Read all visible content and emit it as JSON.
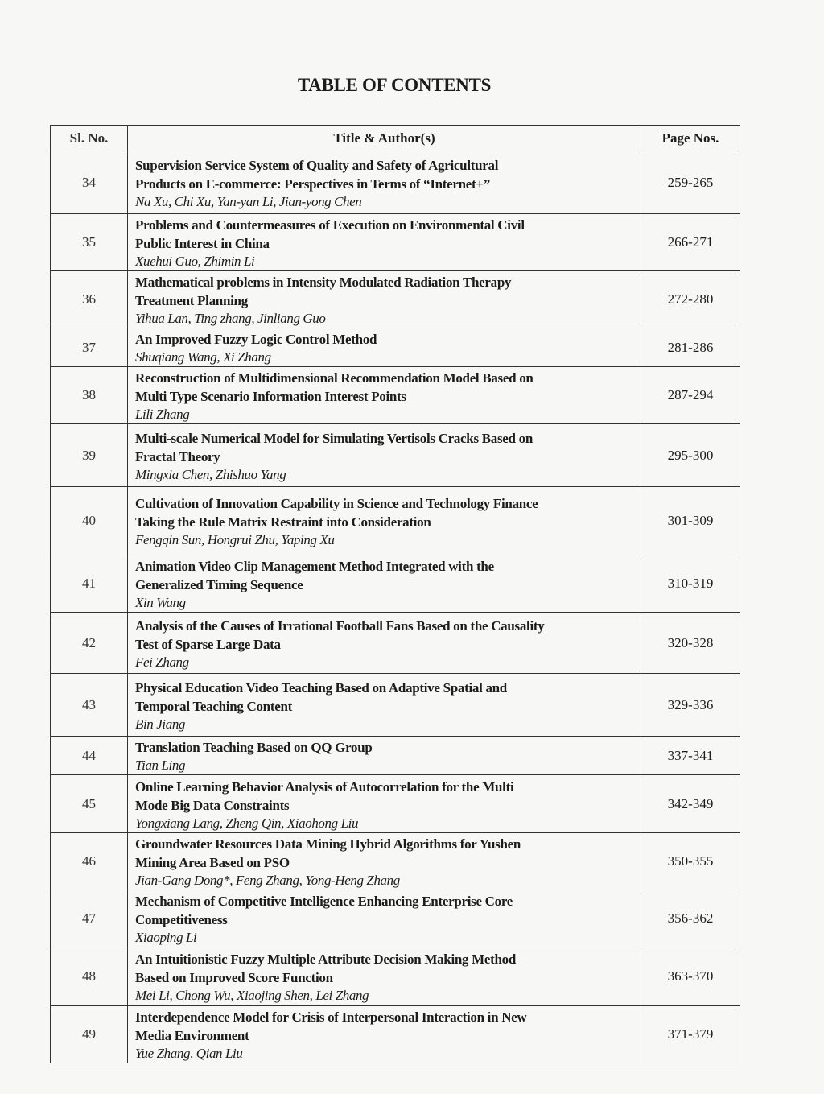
{
  "title": "TABLE OF CONTENTS",
  "headers": {
    "sl": "Sl. No.",
    "title": "Title & Author(s)",
    "pages": "Page Nos."
  },
  "rows": [
    {
      "sl": "34",
      "title": [
        "Supervision Service System of Quality and Safety of Agricultural",
        "Products on E-commerce:  Perspectives in Terms of “Internet+”"
      ],
      "authors": "Na Xu, Chi Xu, Yan-yan Li, Jian-yong Chen",
      "pages": "259-265"
    },
    {
      "sl": "35",
      "title": [
        "Problems and Countermeasures of Execution on Environmental Civil",
        "Public Interest in China"
      ],
      "authors": "Xuehui Guo, Zhimin Li",
      "pages": "266-271"
    },
    {
      "sl": "36",
      "title": [
        "Mathematical problems in Intensity Modulated Radiation Therapy",
        "Treatment Planning"
      ],
      "authors": "Yihua Lan, Ting zhang, Jinliang Guo",
      "pages": "272-280"
    },
    {
      "sl": "37",
      "title": [
        "An Improved Fuzzy Logic Control Method"
      ],
      "authors": "Shuqiang Wang, Xi Zhang",
      "pages": "281-286"
    },
    {
      "sl": "38",
      "title": [
        "Reconstruction of Multidimensional Recommendation Model Based on",
        "Multi Type Scenario Information Interest Points"
      ],
      "authors": "Lili Zhang",
      "pages": "287-294"
    },
    {
      "sl": "39",
      "title": [
        "Multi-scale Numerical Model for Simulating Vertisols Cracks Based on",
        "Fractal Theory"
      ],
      "authors": "Mingxia Chen, Zhishuo Yang",
      "pages": "295-300"
    },
    {
      "sl": "40",
      "title": [
        "Cultivation of Innovation Capability in Science and Technology Finance",
        "Taking the Rule Matrix Restraint into Consideration"
      ],
      "authors": "Fengqin Sun, Hongrui Zhu, Yaping Xu",
      "pages": "301-309"
    },
    {
      "sl": "41",
      "title": [
        "Animation Video Clip Management Method Integrated with the",
        "Generalized Timing Sequence"
      ],
      "authors": "Xin Wang",
      "pages": "310-319"
    },
    {
      "sl": "42",
      "title": [
        "Analysis of the Causes of Irrational Football Fans Based on the Causality",
        "Test of Sparse Large Data"
      ],
      "authors": "Fei Zhang",
      "pages": "320-328"
    },
    {
      "sl": "43",
      "title": [
        "Physical Education Video Teaching Based on Adaptive Spatial and",
        "Temporal Teaching Content"
      ],
      "authors": "Bin Jiang",
      "pages": "329-336"
    },
    {
      "sl": "44",
      "title": [
        "Translation Teaching Based on QQ Group"
      ],
      "authors": "Tian Ling",
      "pages": "337-341"
    },
    {
      "sl": "45",
      "title": [
        "Online Learning Behavior Analysis of Autocorrelation for the Multi",
        "Mode Big Data Constraints"
      ],
      "authors": "Yongxiang Lang,  Zheng Qin,  Xiaohong Liu",
      "pages": "342-349"
    },
    {
      "sl": "46",
      "title": [
        "Groundwater Resources Data Mining Hybrid Algorithms for Yushen",
        "Mining Area Based on PSO"
      ],
      "authors": "Jian-Gang Dong*, Feng Zhang, Yong-Heng Zhang",
      "pages": "350-355"
    },
    {
      "sl": "47",
      "title": [
        "Mechanism of Competitive Intelligence Enhancing Enterprise Core",
        "Competitiveness"
      ],
      "authors": "Xiaoping Li",
      "pages": "356-362"
    },
    {
      "sl": "48",
      "title": [
        "An Intuitionistic Fuzzy Multiple Attribute Decision Making Method",
        "Based on Improved Score Function"
      ],
      "authors": "Mei Li,  Chong Wu,  Xiaojing Shen,  Lei Zhang",
      "pages": "363-370"
    },
    {
      "sl": "49",
      "title": [
        "Interdependence Model for Crisis of Interpersonal Interaction in New",
        "Media Environment"
      ],
      "authors": "Yue Zhang, Qian Liu",
      "pages": "371-379"
    }
  ]
}
